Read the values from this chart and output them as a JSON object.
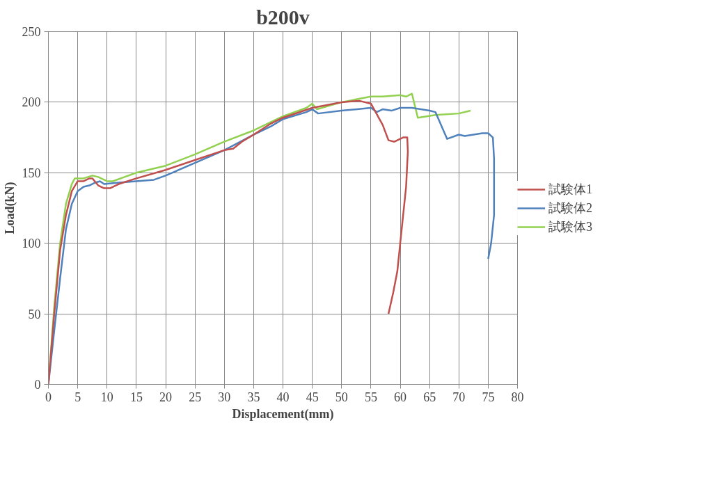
{
  "chart_data": {
    "type": "line",
    "title": "b200v",
    "xlabel": "Displacement(mm)",
    "ylabel": "Load(kN)",
    "xlim": [
      0,
      80
    ],
    "xticks": [
      0,
      5,
      10,
      15,
      20,
      25,
      30,
      35,
      40,
      45,
      50,
      55,
      60,
      65,
      70,
      75,
      80
    ],
    "ylim": [
      0,
      250
    ],
    "yticks": [
      0,
      50,
      100,
      150,
      200,
      250
    ],
    "grid": true,
    "legend": "right",
    "marker": "none",
    "line_style": "solid",
    "series": [
      {
        "name": "試験体1",
        "color": "#c0504d",
        "x": [
          0,
          1,
          2,
          3,
          4,
          5,
          6,
          7,
          7.5,
          8.5,
          9.5,
          10.5,
          12,
          15,
          20,
          25,
          30,
          31.5,
          33,
          35,
          38,
          40,
          45,
          50,
          53,
          55,
          57,
          58,
          59,
          60.5,
          61.2,
          61.3,
          61,
          60,
          59.5,
          58.8,
          58
        ],
        "values": [
          0,
          50,
          95,
          120,
          137,
          144,
          144,
          146,
          146,
          141,
          139,
          139,
          142,
          146,
          152,
          159,
          166,
          167,
          172,
          177,
          185,
          189,
          196,
          200,
          201,
          199,
          184,
          173,
          172,
          175,
          175,
          165,
          140,
          100,
          80,
          65,
          50
        ]
      },
      {
        "name": "試験体2",
        "color": "#4f81bd",
        "x": [
          0,
          1,
          2,
          3,
          4,
          5,
          6,
          7,
          8,
          8.8,
          9.5,
          12,
          15,
          18,
          20,
          25,
          30,
          35,
          38,
          40,
          44,
          45,
          46,
          50,
          55,
          56,
          57,
          58.5,
          60,
          62,
          65,
          66,
          68,
          70,
          71,
          74,
          75,
          75.8,
          76,
          76,
          75.5,
          75
        ],
        "values": [
          0,
          38,
          75,
          110,
          128,
          137,
          140,
          141,
          143,
          144,
          142,
          143,
          144,
          145,
          148,
          157,
          166,
          177,
          183,
          188,
          193,
          195,
          192,
          194,
          196,
          193,
          195,
          194,
          196,
          196,
          194,
          193,
          174,
          177,
          176,
          178,
          178,
          175,
          160,
          120,
          100,
          89
        ]
      },
      {
        "name": "試験体3",
        "color": "#92d050",
        "x": [
          0,
          1,
          2,
          3,
          4,
          4.5,
          6,
          7.5,
          8.5,
          10,
          11,
          13,
          15,
          20,
          25,
          30,
          35,
          40,
          44,
          45,
          45.8,
          50,
          55,
          57,
          60,
          61,
          62,
          63,
          66,
          70,
          72
        ],
        "values": [
          0,
          55,
          100,
          128,
          142,
          146,
          146,
          148,
          147,
          144,
          144,
          147,
          150,
          155,
          163,
          172,
          180,
          190,
          196,
          199,
          195,
          200,
          204,
          204,
          205,
          204,
          206,
          189,
          191,
          192,
          194
        ]
      }
    ]
  }
}
